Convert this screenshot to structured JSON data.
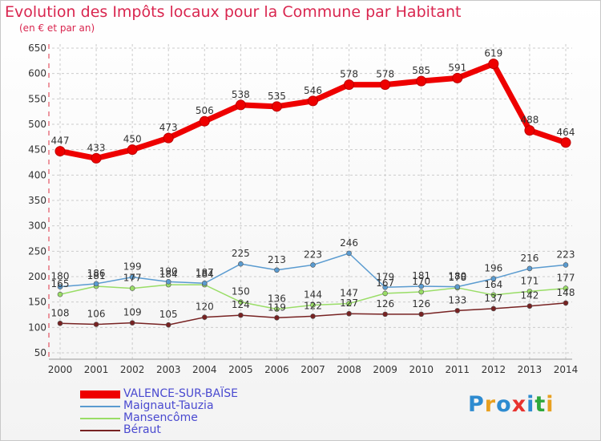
{
  "title": "Evolution des Impôts locaux pour la Commune par Habitant",
  "subtitle": "(en € et par an)",
  "logo": {
    "text": "Proxiti",
    "colors": [
      "#2e8bd0",
      "#e8a020",
      "#2e8bd0",
      "#e8322e",
      "#2e8bd0",
      "#2ea83c",
      "#e8a020"
    ]
  },
  "chart_data": {
    "type": "line",
    "title": "Evolution des Impôts locaux pour la Commune par Habitant",
    "ylabel": "(en € et par an)",
    "xlabel": "",
    "ylim": [
      50,
      650
    ],
    "yticks": [
      50,
      100,
      150,
      200,
      250,
      300,
      350,
      400,
      450,
      500,
      550,
      600,
      650
    ],
    "categories": [
      "2000",
      "2001",
      "2002",
      "2003",
      "2004",
      "2005",
      "2006",
      "2007",
      "2008",
      "2009",
      "2010",
      "2011",
      "2012",
      "2013",
      "2014"
    ],
    "series": [
      {
        "name": "VALENCE-SUR-BAÏSE",
        "color": "#ee0000",
        "values": [
          447,
          433,
          450,
          473,
          506,
          538,
          535,
          546,
          578,
          578,
          585,
          591,
          619,
          488,
          464
        ]
      },
      {
        "name": "Maignaut-Tauzia",
        "color": "#5a9bd0",
        "values": [
          180,
          186,
          199,
          190,
          187,
          225,
          213,
          223,
          246,
          179,
          181,
          180,
          196,
          216,
          223
        ]
      },
      {
        "name": "Mansencôme",
        "color": "#99dd66",
        "values": [
          165,
          181,
          177,
          184,
          184,
          150,
          136,
          144,
          147,
          167,
          170,
          178,
          164,
          171,
          177
        ]
      },
      {
        "name": "Béraut",
        "color": "#772222",
        "values": [
          108,
          106,
          109,
          105,
          120,
          124,
          119,
          122,
          127,
          126,
          126,
          133,
          137,
          142,
          148
        ]
      }
    ]
  }
}
